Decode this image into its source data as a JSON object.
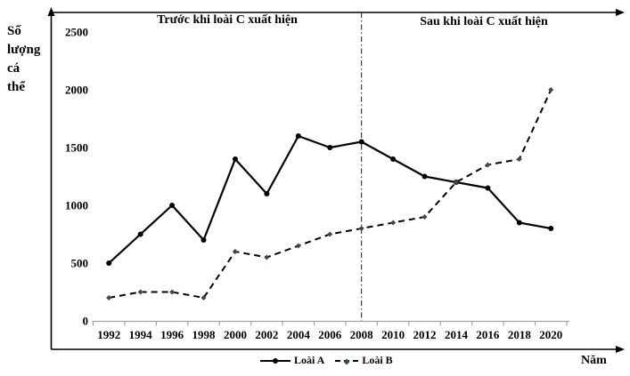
{
  "chart_data": {
    "type": "line",
    "x": [
      1992,
      1994,
      1996,
      1998,
      2000,
      2002,
      2004,
      2006,
      2008,
      2010,
      2012,
      2014,
      2016,
      2018,
      2020
    ],
    "series": [
      {
        "name": "Loài A",
        "style": "solid",
        "marker": "circle",
        "line_color": "#000000",
        "marker_color": "#000000",
        "values": [
          500,
          750,
          1000,
          700,
          1400,
          1100,
          1600,
          1500,
          1550,
          1400,
          1250,
          1200,
          1150,
          850,
          800
        ]
      },
      {
        "name": "Loài B",
        "style": "dashed",
        "marker": "diamond",
        "line_color": "#000000",
        "marker_color": "#3b4859",
        "values": [
          200,
          250,
          250,
          200,
          600,
          550,
          650,
          750,
          800,
          850,
          900,
          1200,
          1350,
          1400,
          2000
        ]
      }
    ],
    "y_ticks": [
      0,
      500,
      1000,
      1500,
      2000,
      2500
    ],
    "ylim": [
      0,
      2500
    ],
    "ylabel": "Số lượng cá thể",
    "ylabel_lines": [
      "Số",
      "lượng",
      "cá",
      "thể"
    ],
    "xlabel": "Năm",
    "annotations": {
      "before": "Trước khi loài C xuất hiện",
      "after": "Sau khi loài C xuất hiện"
    },
    "divider_x": 2008,
    "grid": false,
    "legend_position": "bottom",
    "axis_color": "#a6a6a6",
    "frame_color": "#000000"
  }
}
